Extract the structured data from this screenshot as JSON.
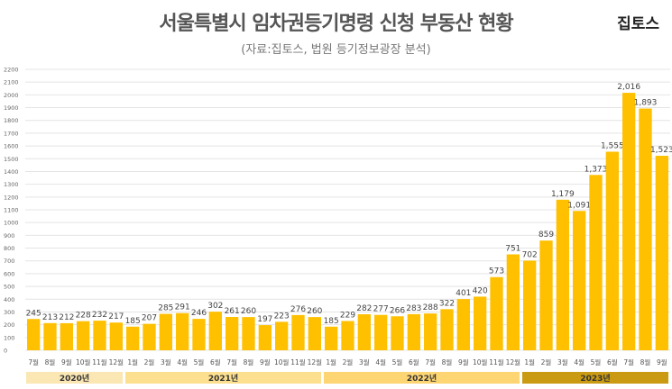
{
  "header": {
    "title": "서울특별시 임차권등기명령 신청 부동산 현황",
    "logo": "집토스",
    "subtitle": "(자료:집토스, 법원 등기정보광장 분석)"
  },
  "chart_data": {
    "type": "bar",
    "title": "서울특별시 임차권등기명령 신청 부동산 현황",
    "ylim": [
      0,
      2200
    ],
    "ytick_step": 100,
    "grid": true,
    "bar_color": "#ffc000",
    "categories": [
      "7월",
      "8월",
      "9월",
      "10월",
      "11월",
      "12월",
      "1월",
      "2월",
      "3월",
      "4월",
      "5월",
      "6월",
      "7월",
      "8월",
      "9월",
      "10월",
      "11월",
      "12월",
      "1월",
      "2월",
      "3월",
      "4월",
      "5월",
      "6월",
      "7월",
      "8월",
      "9월",
      "10월",
      "11월",
      "12월",
      "1월",
      "2월",
      "3월",
      "4월",
      "5월",
      "6월",
      "7월",
      "8월",
      "9월"
    ],
    "values": [
      245,
      213,
      212,
      228,
      232,
      217,
      185,
      207,
      285,
      291,
      246,
      302,
      261,
      260,
      197,
      223,
      276,
      260,
      185,
      229,
      282,
      277,
      266,
      283,
      288,
      322,
      401,
      420,
      573,
      751,
      702,
      859,
      1179,
      1091,
      1373,
      1555,
      2016,
      1893,
      1523
    ],
    "data_labels": [
      "245",
      "213",
      "212",
      "228",
      "232",
      "217",
      "185",
      "207",
      "285",
      "291",
      "246",
      "302",
      "261",
      "260",
      "197",
      "223",
      "276",
      "260",
      "185",
      "229",
      "282",
      "277",
      "266",
      "283",
      "288",
      "322",
      "401",
      "420",
      "573",
      "751",
      "702",
      "859",
      "1,179",
      "1,091",
      "1,373",
      "1,555",
      "2,016",
      "1,893",
      "1,523"
    ],
    "year_groups": [
      {
        "label": "2020년",
        "count": 6,
        "color": "#fbe7b3"
      },
      {
        "label": "2021년",
        "count": 12,
        "color": "#fde08f"
      },
      {
        "label": "2022년",
        "count": 12,
        "color": "#fdd573"
      },
      {
        "label": "2023년",
        "count": 9,
        "color": "#c99a12"
      }
    ]
  }
}
